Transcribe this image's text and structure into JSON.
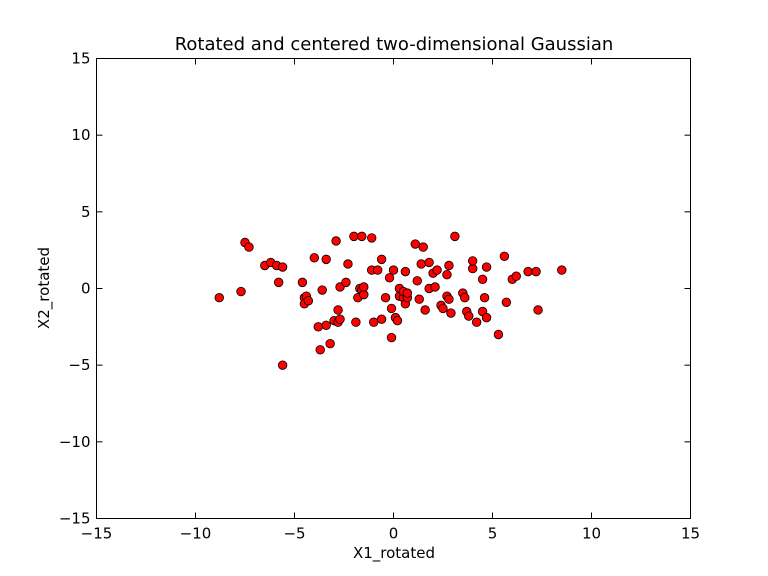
{
  "chart_data": {
    "type": "scatter",
    "title": "Rotated and centered two-dimensional Gaussian",
    "xlabel": "X1_rotated",
    "ylabel": "X2_rotated",
    "xlim": [
      -15,
      15
    ],
    "ylim": [
      -15,
      15
    ],
    "xticks": [
      -15,
      -10,
      -5,
      0,
      5,
      10,
      15
    ],
    "yticks": [
      -15,
      -10,
      -5,
      0,
      5,
      10,
      15
    ],
    "xtick_labels": [
      "−15",
      "−10",
      "−5",
      "0",
      "5",
      "10",
      "15"
    ],
    "ytick_labels": [
      "−15",
      "−10",
      "−5",
      "0",
      "5",
      "10",
      "15"
    ],
    "grid": false,
    "marker_color": "#ff0000",
    "marker_edge_color": "#000000",
    "points": [
      [
        -8.8,
        -0.6
      ],
      [
        -7.7,
        -0.2
      ],
      [
        -7.5,
        3.0
      ],
      [
        -7.3,
        2.7
      ],
      [
        -6.5,
        1.5
      ],
      [
        -6.2,
        1.7
      ],
      [
        -5.9,
        1.5
      ],
      [
        -5.8,
        0.4
      ],
      [
        -5.6,
        1.4
      ],
      [
        -5.6,
        -5.0
      ],
      [
        -4.6,
        0.4
      ],
      [
        -4.5,
        -0.6
      ],
      [
        -4.5,
        -1.0
      ],
      [
        -4.4,
        -0.5
      ],
      [
        -4.3,
        -0.8
      ],
      [
        -4.0,
        2.0
      ],
      [
        -3.8,
        -2.5
      ],
      [
        -3.7,
        -4.0
      ],
      [
        -3.6,
        -0.1
      ],
      [
        -3.4,
        1.9
      ],
      [
        -3.4,
        -2.4
      ],
      [
        -3.2,
        -3.6
      ],
      [
        -3.0,
        -2.1
      ],
      [
        -2.9,
        3.1
      ],
      [
        -2.8,
        -2.2
      ],
      [
        -2.8,
        -1.4
      ],
      [
        -2.7,
        -2.0
      ],
      [
        -2.7,
        0.1
      ],
      [
        -2.4,
        0.4
      ],
      [
        -2.3,
        1.6
      ],
      [
        -2.0,
        3.4
      ],
      [
        -1.9,
        -2.2
      ],
      [
        -1.8,
        -0.6
      ],
      [
        -1.7,
        0.0
      ],
      [
        -1.6,
        3.4
      ],
      [
        -1.6,
        -0.1
      ],
      [
        -1.5,
        -0.4
      ],
      [
        -1.5,
        0.1
      ],
      [
        -1.1,
        3.3
      ],
      [
        -1.1,
        1.2
      ],
      [
        -1.0,
        -2.2
      ],
      [
        -0.8,
        1.2
      ],
      [
        -0.6,
        1.9
      ],
      [
        -0.6,
        -2.0
      ],
      [
        -0.4,
        -0.6
      ],
      [
        -0.2,
        0.7
      ],
      [
        -0.1,
        -1.3
      ],
      [
        -0.1,
        -3.2
      ],
      [
        0.0,
        1.2
      ],
      [
        0.1,
        -1.9
      ],
      [
        0.2,
        -2.1
      ],
      [
        0.3,
        -0.5
      ],
      [
        0.3,
        0.0
      ],
      [
        0.5,
        -0.6
      ],
      [
        0.5,
        -0.2
      ],
      [
        0.6,
        1.1
      ],
      [
        0.6,
        -1.0
      ],
      [
        0.7,
        -0.6
      ],
      [
        0.7,
        -0.3
      ],
      [
        1.1,
        2.9
      ],
      [
        1.2,
        0.5
      ],
      [
        1.3,
        -0.7
      ],
      [
        1.4,
        1.6
      ],
      [
        1.5,
        2.7
      ],
      [
        1.6,
        -1.4
      ],
      [
        1.8,
        1.7
      ],
      [
        1.8,
        0.0
      ],
      [
        2.0,
        1.0
      ],
      [
        2.1,
        0.1
      ],
      [
        2.2,
        1.2
      ],
      [
        2.4,
        -1.1
      ],
      [
        2.5,
        -1.3
      ],
      [
        2.7,
        -0.5
      ],
      [
        2.7,
        0.9
      ],
      [
        2.8,
        -0.7
      ],
      [
        2.8,
        1.5
      ],
      [
        2.9,
        -1.6
      ],
      [
        3.1,
        3.4
      ],
      [
        3.5,
        -0.3
      ],
      [
        3.6,
        -0.6
      ],
      [
        3.7,
        -1.5
      ],
      [
        3.8,
        -1.8
      ],
      [
        4.0,
        1.3
      ],
      [
        4.0,
        1.8
      ],
      [
        4.2,
        -2.2
      ],
      [
        4.5,
        0.6
      ],
      [
        4.5,
        -1.5
      ],
      [
        4.6,
        -0.6
      ],
      [
        4.7,
        1.4
      ],
      [
        4.7,
        -1.9
      ],
      [
        5.3,
        -3.0
      ],
      [
        5.6,
        2.1
      ],
      [
        5.7,
        -0.9
      ],
      [
        6.0,
        0.6
      ],
      [
        6.2,
        0.8
      ],
      [
        6.8,
        1.1
      ],
      [
        7.2,
        1.1
      ],
      [
        7.3,
        -1.4
      ],
      [
        8.5,
        1.2
      ]
    ]
  }
}
